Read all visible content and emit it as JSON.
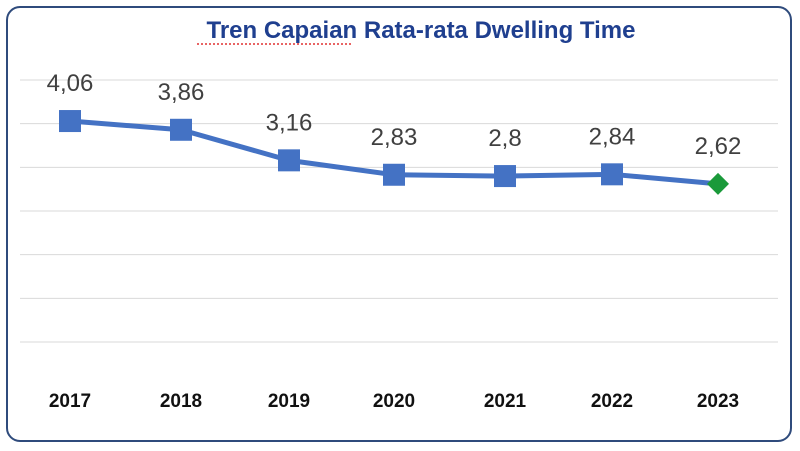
{
  "chart_data": {
    "type": "line",
    "title": "Tren Capaian Rata-rata Dwelling Time",
    "categories": [
      "2017",
      "2018",
      "2019",
      "2020",
      "2021",
      "2022",
      "2023"
    ],
    "series": [
      {
        "name": "Rata-rata Dwelling Time",
        "values": [
          4.06,
          3.86,
          3.16,
          2.83,
          2.8,
          2.84,
          2.62
        ],
        "labels": [
          "4,06",
          "3,86",
          "3,16",
          "2,83",
          "2,8",
          "2,84",
          "2,62"
        ]
      }
    ],
    "xlabel": "",
    "ylabel": "",
    "ylim": [
      -1,
      5
    ],
    "grid": true,
    "colors": {
      "title": "#1f3f8f",
      "line": "#4472c4",
      "last_marker": "#1a9a3a",
      "grid": "#d9d9d9",
      "frame": "#2f4b7c"
    }
  }
}
